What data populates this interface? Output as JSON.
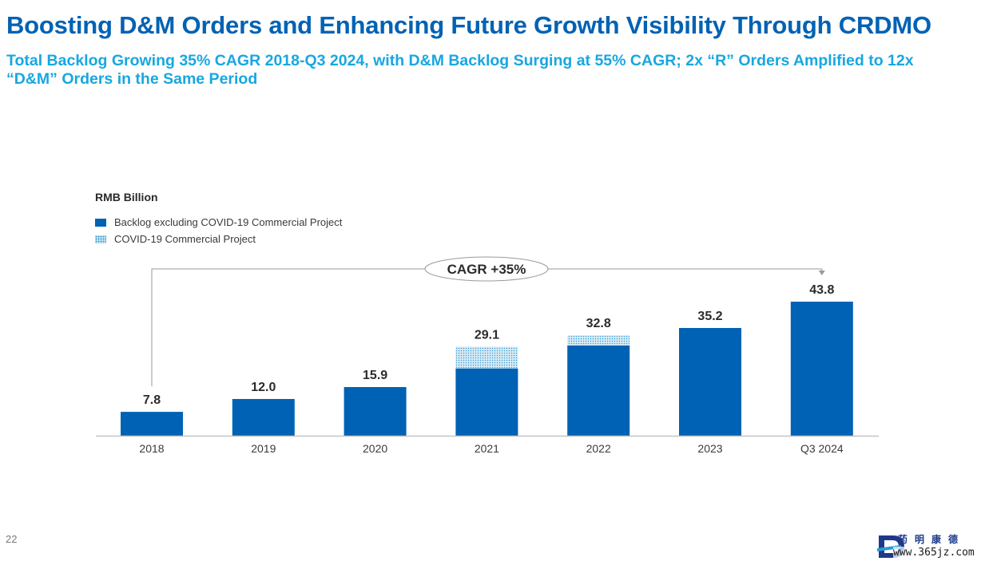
{
  "slide": {
    "title": "Boosting D&M Orders and Enhancing Future Growth Visibility Through CRDMO",
    "subtitle": "Total Backlog Growing 35% CAGR 2018-Q3 2024, with D&M Backlog Surging at 55% CAGR; 2x “R” Orders Amplified to 12x “D&M” Orders in the Same Period",
    "page_number": "22"
  },
  "colors": {
    "title": "#0062b4",
    "subtitle": "#18a7e0",
    "bar_solid": "#0062b4",
    "bar_covid": "#d7ecf6",
    "covid_dots": "#3d9bd3"
  },
  "logo": {
    "icon": "wuxi-biologics-logo",
    "cjk_text": "药明康德",
    "url_watermark": "www.365jz.com"
  },
  "chart_data": {
    "type": "bar",
    "stacked": true,
    "unit_label": "RMB Billion",
    "categories": [
      "2018",
      "2019",
      "2020",
      "2021",
      "2022",
      "2023",
      "Q3 2024"
    ],
    "series": [
      {
        "name": "Backlog excluding COVID-19 Commercial Project",
        "values": [
          7.8,
          12.0,
          15.9,
          22.0,
          29.5,
          35.2,
          43.8
        ]
      },
      {
        "name": "COVID-19 Commercial Project",
        "values": [
          0,
          0,
          0,
          7.1,
          3.3,
          0,
          0
        ]
      }
    ],
    "totals": [
      "7.8",
      "12.0",
      "15.9",
      "29.1",
      "32.8",
      "35.2",
      "43.8"
    ],
    "annotation": "CAGR +35%",
    "legend_position": "top-left",
    "grid": false,
    "ylim": [
      0,
      50
    ]
  }
}
